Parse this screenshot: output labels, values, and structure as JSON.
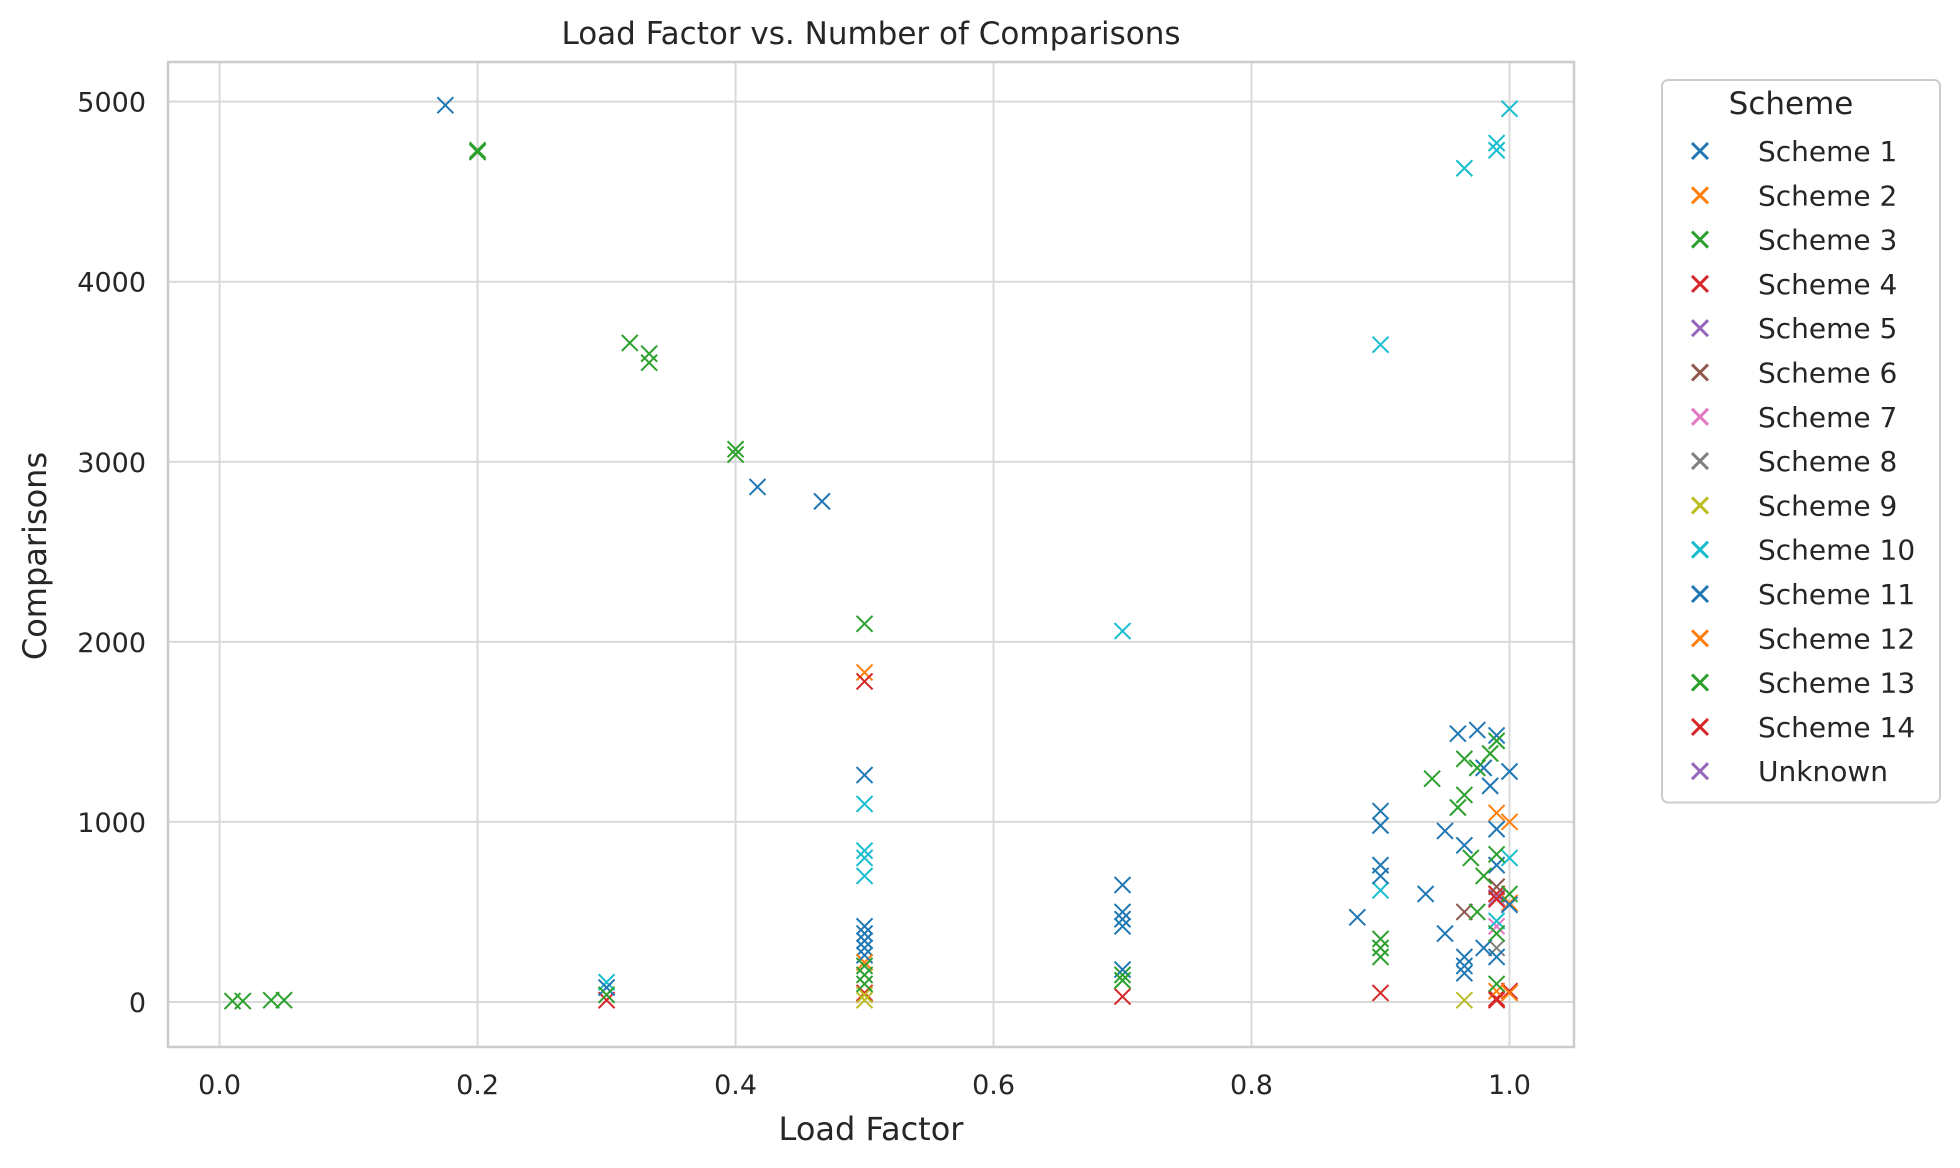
{
  "chart_data": {
    "type": "scatter",
    "title": "Load Factor vs. Number of Comparisons",
    "xlabel": "Load Factor",
    "ylabel": "Comparisons",
    "xlim": [
      -0.04,
      1.05
    ],
    "ylim": [
      -250,
      5220
    ],
    "xticks": [
      0.0,
      0.2,
      0.4,
      0.6,
      0.8,
      1.0
    ],
    "xtick_labels": [
      "0.0",
      "0.2",
      "0.4",
      "0.6",
      "0.8",
      "1.0"
    ],
    "yticks": [
      0,
      1000,
      2000,
      3000,
      4000,
      5000
    ],
    "ytick_labels": [
      "0",
      "1000",
      "2000",
      "3000",
      "4000",
      "5000"
    ],
    "grid": true,
    "marker": "x",
    "legend": {
      "title": "Scheme",
      "placement": "outside-right"
    },
    "series": [
      {
        "name": "Scheme 1",
        "color": "#1f77b4",
        "points": [
          [
            0.175,
            4980
          ],
          [
            0.5,
            1260
          ],
          [
            0.5,
            420
          ],
          [
            0.5,
            300
          ],
          [
            0.7,
            650
          ],
          [
            0.7,
            500
          ],
          [
            0.9,
            1060
          ],
          [
            0.9,
            760
          ],
          [
            0.965,
            870
          ],
          [
            0.965,
            200
          ],
          [
            0.975,
            1510
          ],
          [
            0.98,
            1300
          ],
          [
            0.99,
            1480
          ],
          [
            0.99,
            600
          ],
          [
            1.0,
            1280
          ],
          [
            0.96,
            1490
          ]
        ]
      },
      {
        "name": "Scheme 2",
        "color": "#ff7f0e",
        "points": [
          [
            0.5,
            1830
          ],
          [
            0.5,
            220
          ],
          [
            0.99,
            1050
          ],
          [
            1.0,
            1000
          ],
          [
            0.99,
            600
          ],
          [
            1.0,
            550
          ]
        ]
      },
      {
        "name": "Scheme 3",
        "color": "#2ca02c",
        "points": [
          [
            0.01,
            5
          ],
          [
            0.2,
            4720
          ],
          [
            0.2,
            4730
          ],
          [
            0.318,
            3660
          ],
          [
            0.333,
            3600
          ],
          [
            0.333,
            3550
          ],
          [
            0.4,
            3070
          ],
          [
            0.4,
            3040
          ],
          [
            0.5,
            2100
          ],
          [
            0.5,
            150
          ],
          [
            0.7,
            150
          ],
          [
            0.9,
            300
          ],
          [
            0.94,
            1240
          ],
          [
            0.965,
            1150
          ],
          [
            0.975,
            1300
          ],
          [
            0.985,
            1380
          ],
          [
            0.99,
            1450
          ]
        ]
      },
      {
        "name": "Scheme 4",
        "color": "#d62728",
        "points": [
          [
            0.3,
            10
          ],
          [
            0.5,
            1780
          ],
          [
            0.5,
            50
          ],
          [
            0.7,
            30
          ],
          [
            0.9,
            50
          ],
          [
            0.99,
            20
          ],
          [
            0.99,
            600
          ],
          [
            1.0,
            60
          ]
        ]
      },
      {
        "name": "Scheme 5",
        "color": "#9467bd",
        "points": [
          [
            0.99,
            580
          ]
        ]
      },
      {
        "name": "Scheme 6",
        "color": "#8c564b",
        "points": [
          [
            0.965,
            500
          ],
          [
            0.99,
            640
          ]
        ]
      },
      {
        "name": "Scheme 7",
        "color": "#e377c2",
        "points": [
          [
            0.99,
            420
          ]
        ]
      },
      {
        "name": "Scheme 8",
        "color": "#7f7f7f",
        "points": [
          [
            0.99,
            300
          ]
        ]
      },
      {
        "name": "Scheme 9",
        "color": "#bcbd22",
        "points": [
          [
            0.5,
            10
          ],
          [
            0.965,
            10
          ],
          [
            0.5,
            40
          ]
        ]
      },
      {
        "name": "Scheme 10",
        "color": "#17becf",
        "points": [
          [
            0.3,
            110
          ],
          [
            0.5,
            1100
          ],
          [
            0.5,
            840
          ],
          [
            0.5,
            800
          ],
          [
            0.5,
            700
          ],
          [
            0.7,
            2060
          ],
          [
            0.9,
            3650
          ],
          [
            0.9,
            620
          ],
          [
            0.965,
            4630
          ],
          [
            0.99,
            4730
          ],
          [
            0.99,
            4770
          ],
          [
            1.0,
            4960
          ],
          [
            1.0,
            800
          ],
          [
            0.99,
            450
          ]
        ]
      },
      {
        "name": "Scheme 11",
        "color": "#1f77b4",
        "points": [
          [
            0.417,
            2860
          ],
          [
            0.467,
            2780
          ],
          [
            0.5,
            380
          ],
          [
            0.5,
            340
          ],
          [
            0.5,
            260
          ],
          [
            0.3,
            80
          ],
          [
            0.7,
            460
          ],
          [
            0.7,
            420
          ],
          [
            0.7,
            180
          ],
          [
            0.882,
            470
          ],
          [
            0.9,
            980
          ],
          [
            0.9,
            700
          ],
          [
            0.935,
            600
          ],
          [
            0.95,
            950
          ],
          [
            0.95,
            380
          ],
          [
            0.965,
            250
          ],
          [
            0.965,
            160
          ],
          [
            0.98,
            300
          ],
          [
            0.985,
            1200
          ],
          [
            0.99,
            960
          ],
          [
            0.99,
            760
          ],
          [
            0.99,
            250
          ],
          [
            1.0,
            540
          ]
        ]
      },
      {
        "name": "Scheme 12",
        "color": "#ff7f0e",
        "points": [
          [
            0.99,
            60
          ],
          [
            1.0,
            50
          ]
        ]
      },
      {
        "name": "Scheme 13",
        "color": "#2ca02c",
        "points": [
          [
            0.018,
            5
          ],
          [
            0.04,
            10
          ],
          [
            0.05,
            10
          ],
          [
            0.3,
            40
          ],
          [
            0.5,
            200
          ],
          [
            0.5,
            100
          ],
          [
            0.7,
            120
          ],
          [
            0.9,
            350
          ],
          [
            0.9,
            250
          ],
          [
            0.96,
            1080
          ],
          [
            0.965,
            1350
          ],
          [
            0.97,
            800
          ],
          [
            0.975,
            500
          ],
          [
            0.98,
            700
          ],
          [
            0.99,
            820
          ],
          [
            0.99,
            380
          ],
          [
            0.99,
            100
          ],
          [
            1.0,
            600
          ]
        ]
      },
      {
        "name": "Scheme 14",
        "color": "#d62728",
        "points": [
          [
            0.99,
            570
          ],
          [
            0.99,
            10
          ]
        ]
      },
      {
        "name": "Unknown",
        "color": "#9467bd",
        "points": []
      }
    ]
  }
}
